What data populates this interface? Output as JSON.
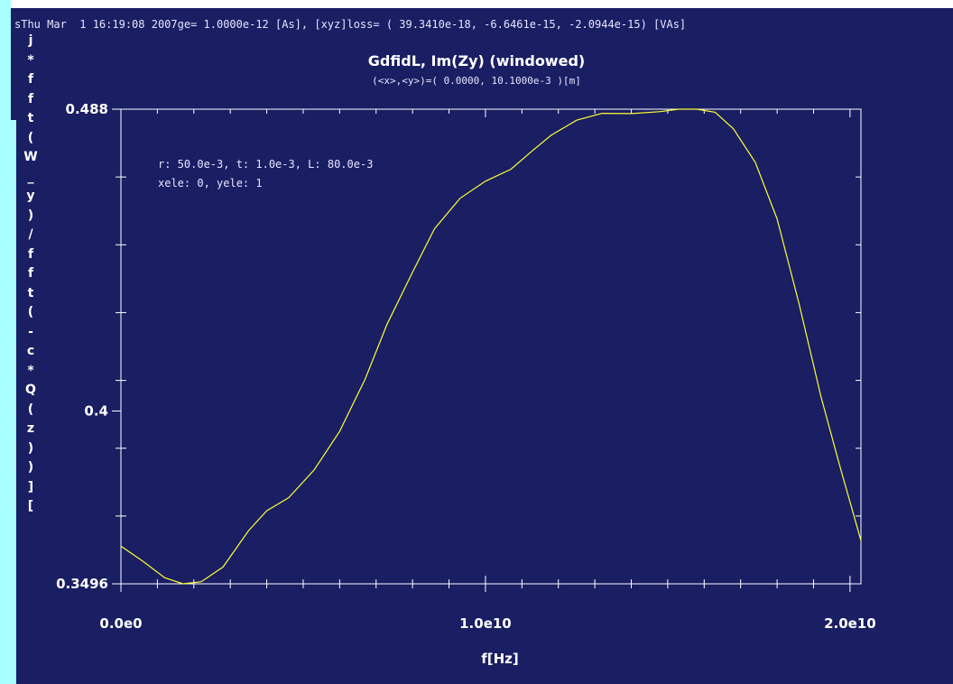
{
  "header": {
    "left_chars": "s",
    "text": "Thu Mar  1 16:19:08 2007ge= 1.0000e-12 [As], [xyz]loss= ( 39.3410e-18, -6.6461e-15, -2.0944e-15) [VAs]"
  },
  "vertical_label": [
    "j",
    "*",
    "f",
    "f",
    "t",
    "(",
    "W",
    "_",
    "y",
    ")",
    "/",
    "f",
    "f",
    "t",
    "(",
    "-",
    "c",
    "*",
    "Q",
    "(",
    "z",
    ")",
    ")",
    "]",
    "["
  ],
  "chart_data": {
    "type": "line",
    "title": "GdfidL, Im(Zy) (windowed)",
    "subtitle": "(<x>,<y>)=( 0.0000, 10.1000e-3 )[m]",
    "xlabel": "f[Hz]",
    "ylabel": "",
    "xlim": [
      0,
      20300000000
    ],
    "ylim": [
      0.3496,
      0.488
    ],
    "x_ticks": [
      {
        "value": 0,
        "label": "0.0e0"
      },
      {
        "value": 10000000000,
        "label": "1.0e10"
      },
      {
        "value": 20000000000,
        "label": "2.0e10"
      }
    ],
    "y_ticks": [
      {
        "value": 0.488,
        "label": "0.488"
      },
      {
        "value": 0.4,
        "label": "0.4"
      },
      {
        "value": 0.3496,
        "label": "0.3496"
      }
    ],
    "annotations": [
      "r: 50.0e-3, t: 1.0e-3, L: 80.0e-3",
      "xele: 0, yele: 1"
    ],
    "series": [
      {
        "color": "#ffff33",
        "x": [
          0,
          600000000,
          1200000000,
          1700000000,
          2200000000,
          2800000000,
          3500000000,
          4000000000,
          4600000000,
          5300000000,
          6000000000,
          6700000000,
          7300000000,
          8000000000,
          8600000000,
          9300000000,
          10000000000,
          10700000000,
          11300000000,
          11800000000,
          12500000000,
          13200000000,
          14000000000,
          14800000000,
          15300000000,
          15800000000,
          16300000000,
          16800000000,
          17400000000,
          18000000000,
          18600000000,
          19200000000,
          19700000000,
          20300000000
        ],
        "y": [
          0.3606,
          0.3562,
          0.3514,
          0.3496,
          0.3502,
          0.3545,
          0.3651,
          0.3709,
          0.3747,
          0.3828,
          0.3941,
          0.4093,
          0.4253,
          0.4405,
          0.4531,
          0.462,
          0.467,
          0.4705,
          0.476,
          0.4804,
          0.4848,
          0.4868,
          0.4867,
          0.4873,
          0.488,
          0.488,
          0.4871,
          0.4823,
          0.4725,
          0.456,
          0.4314,
          0.4043,
          0.3847,
          0.3622
        ]
      }
    ],
    "grid": false,
    "background": "#1a1e63",
    "line_color": "#ffff33"
  }
}
